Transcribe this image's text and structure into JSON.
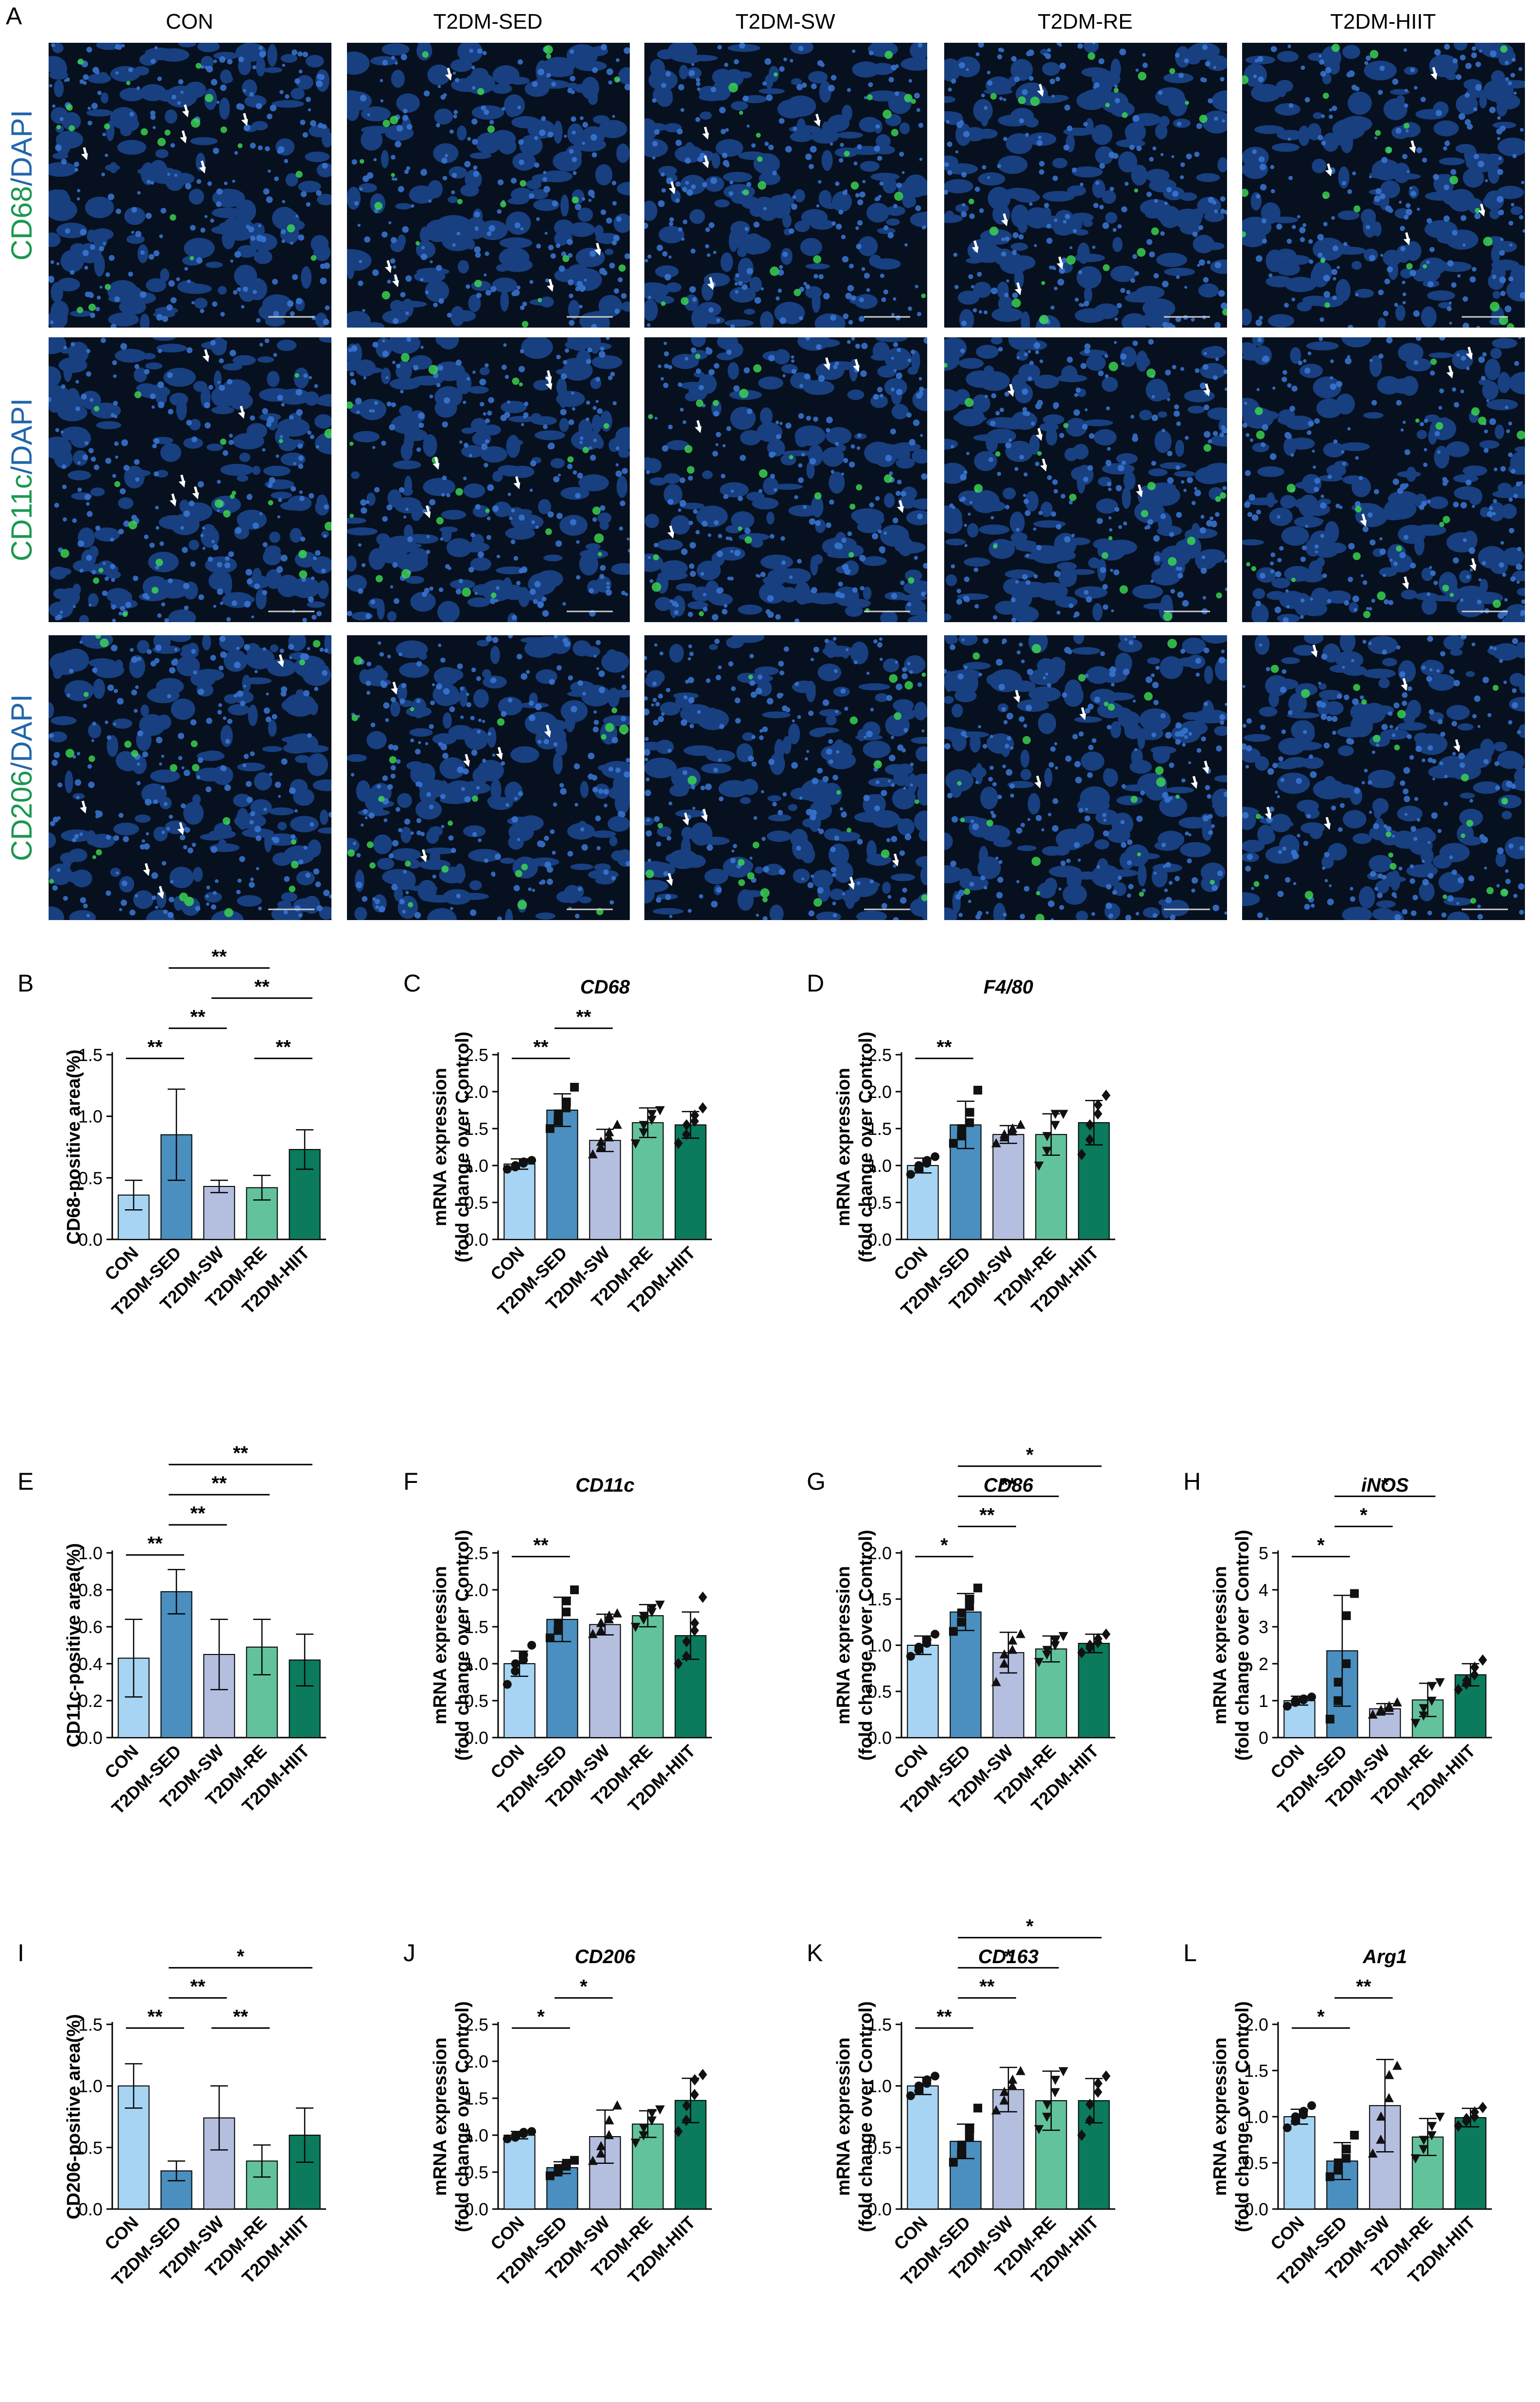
{
  "figure": {
    "panel_a_letter": "A",
    "groups": [
      "CON",
      "T2DM-SED",
      "T2DM-SW",
      "T2DM-RE",
      "T2DM-HIIT"
    ],
    "rows": [
      {
        "marker": "CD68",
        "sep": "/",
        "counter": "DAPI"
      },
      {
        "marker": "CD11c",
        "sep": "/",
        "counter": "DAPI"
      },
      {
        "marker": "CD206",
        "sep": "/",
        "counter": "DAPI"
      }
    ],
    "colors": {
      "marker_green": "#1a9850",
      "dapi_blue": "#2166ac",
      "tissue_blue": "#1f4fa0",
      "cell_green": "#3ddc52",
      "arrow": "#ffffff",
      "bar_colors": [
        "#a6d4f2",
        "#4a8fbf",
        "#b4bedf",
        "#62c29c",
        "#0b7a5d"
      ]
    }
  },
  "chart_data": [
    {
      "panel": "B",
      "type": "bar",
      "title": "",
      "ylabel": "CD68-positive area(%)",
      "categories": [
        "CON",
        "T2DM-SED",
        "T2DM-SW",
        "T2DM-RE",
        "T2DM-HIIT"
      ],
      "values": [
        0.36,
        0.85,
        0.43,
        0.42,
        0.73
      ],
      "errors": [
        0.12,
        0.37,
        0.05,
        0.1,
        0.16
      ],
      "ylim": [
        0,
        1.5
      ],
      "yticks": [
        "0.0",
        "0.5",
        "1.0",
        "1.5"
      ],
      "significance": [
        {
          "from": 0,
          "to": 1,
          "label": "**"
        },
        {
          "from": 1,
          "to": 2,
          "label": "**"
        },
        {
          "from": 2,
          "to": 4,
          "label": "**"
        },
        {
          "from": 1,
          "to": 3,
          "label": "**"
        },
        {
          "from": 3,
          "to": 4,
          "label": "**"
        }
      ]
    },
    {
      "panel": "C",
      "type": "bar",
      "title": "CD68",
      "ylabel": "mRNA expression\n(fold change over Control)",
      "categories": [
        "CON",
        "T2DM-SED",
        "T2DM-SW",
        "T2DM-RE",
        "T2DM-HIIT"
      ],
      "values": [
        1.02,
        1.75,
        1.34,
        1.58,
        1.55
      ],
      "errors": [
        0.07,
        0.22,
        0.15,
        0.2,
        0.18
      ],
      "points": [
        [
          0.95,
          0.98,
          1.0,
          1.03,
          1.05,
          1.07
        ],
        [
          1.5,
          1.6,
          1.7,
          1.78,
          1.86,
          2.06
        ],
        [
          1.15,
          1.25,
          1.32,
          1.38,
          1.45,
          1.55
        ],
        [
          1.3,
          1.45,
          1.55,
          1.62,
          1.7,
          1.75
        ],
        [
          1.3,
          1.42,
          1.55,
          1.6,
          1.68,
          1.78
        ]
      ],
      "ylim": [
        0,
        2.5
      ],
      "yticks": [
        "0.0",
        "0.5",
        "1.0",
        "1.5",
        "2.0",
        "2.5"
      ],
      "significance": [
        {
          "from": 0,
          "to": 1,
          "label": "**"
        },
        {
          "from": 1,
          "to": 2,
          "label": "**"
        }
      ]
    },
    {
      "panel": "D",
      "type": "bar",
      "title": "F4/80",
      "ylabel": "mRNA expression\n(fold change over Control)",
      "categories": [
        "CON",
        "T2DM-SED",
        "T2DM-SW",
        "T2DM-RE",
        "T2DM-HIIT"
      ],
      "values": [
        1.0,
        1.55,
        1.42,
        1.42,
        1.58
      ],
      "errors": [
        0.1,
        0.32,
        0.12,
        0.28,
        0.3
      ],
      "points": [
        [
          0.88,
          0.95,
          1.0,
          1.03,
          1.07,
          1.12
        ],
        [
          1.3,
          1.4,
          1.5,
          1.58,
          1.72,
          2.02
        ],
        [
          1.3,
          1.38,
          1.42,
          1.46,
          1.5,
          1.55
        ],
        [
          1.0,
          1.2,
          1.4,
          1.55,
          1.7,
          1.7
        ],
        [
          1.15,
          1.35,
          1.55,
          1.7,
          1.82,
          1.95
        ]
      ],
      "ylim": [
        0,
        2.5
      ],
      "yticks": [
        "0.0",
        "0.5",
        "1.0",
        "1.5",
        "2.0",
        "2.5"
      ],
      "significance": [
        {
          "from": 0,
          "to": 1,
          "label": "**"
        }
      ]
    },
    {
      "panel": "E",
      "type": "bar",
      "title": "",
      "ylabel": "CD11c-positive area(%)",
      "categories": [
        "CON",
        "T2DM-SED",
        "T2DM-SW",
        "T2DM-RE",
        "T2DM-HIIT"
      ],
      "values": [
        0.43,
        0.79,
        0.45,
        0.49,
        0.42
      ],
      "errors": [
        0.21,
        0.12,
        0.19,
        0.15,
        0.14
      ],
      "ylim": [
        0,
        1.0
      ],
      "yticks": [
        "0.0",
        "0.2",
        "0.4",
        "0.6",
        "0.8",
        "1.0"
      ],
      "significance": [
        {
          "from": 0,
          "to": 1,
          "label": "**"
        },
        {
          "from": 1,
          "to": 2,
          "label": "**"
        },
        {
          "from": 1,
          "to": 3,
          "label": "**"
        },
        {
          "from": 1,
          "to": 4,
          "label": "**"
        }
      ]
    },
    {
      "panel": "F",
      "type": "bar",
      "title": "CD11c",
      "ylabel": "mRNA expression\n(fold change over Control)",
      "categories": [
        "CON",
        "T2DM-SED",
        "T2DM-SW",
        "T2DM-RE",
        "T2DM-HIIT"
      ],
      "values": [
        1.0,
        1.6,
        1.53,
        1.65,
        1.38
      ],
      "errors": [
        0.17,
        0.3,
        0.14,
        0.15,
        0.32
      ],
      "points": [
        [
          0.72,
          0.9,
          1.0,
          1.05,
          1.12,
          1.25
        ],
        [
          1.35,
          1.45,
          1.55,
          1.7,
          1.85,
          2.0
        ],
        [
          1.4,
          1.45,
          1.55,
          1.6,
          1.65,
          1.68
        ],
        [
          1.5,
          1.6,
          1.65,
          1.7,
          1.75,
          1.8
        ],
        [
          1.0,
          1.1,
          1.3,
          1.45,
          1.55,
          1.9
        ]
      ],
      "ylim": [
        0,
        2.5
      ],
      "yticks": [
        "0.0",
        "0.5",
        "1.0",
        "1.5",
        "2.0",
        "2.5"
      ],
      "significance": [
        {
          "from": 0,
          "to": 1,
          "label": "**"
        }
      ]
    },
    {
      "panel": "G",
      "type": "bar",
      "title": "CD86",
      "ylabel": "mRNA expression\n(fold change over Control)",
      "categories": [
        "CON",
        "T2DM-SED",
        "T2DM-SW",
        "T2DM-RE",
        "T2DM-HIIT"
      ],
      "values": [
        1.0,
        1.36,
        0.92,
        0.96,
        1.02
      ],
      "errors": [
        0.1,
        0.2,
        0.22,
        0.14,
        0.1
      ],
      "points": [
        [
          0.88,
          0.95,
          0.98,
          1.02,
          1.06,
          1.12
        ],
        [
          1.15,
          1.25,
          1.35,
          1.42,
          1.5,
          1.62
        ],
        [
          0.6,
          0.8,
          0.9,
          0.95,
          1.05,
          1.12
        ],
        [
          0.82,
          0.9,
          0.95,
          1.0,
          1.05,
          1.1
        ],
        [
          0.92,
          0.97,
          1.0,
          1.03,
          1.07,
          1.12
        ]
      ],
      "ylim": [
        0,
        2.0
      ],
      "yticks": [
        "0.0",
        "0.5",
        "1.0",
        "1.5",
        "2.0"
      ],
      "significance": [
        {
          "from": 0,
          "to": 1,
          "label": "*"
        },
        {
          "from": 1,
          "to": 2,
          "label": "**"
        },
        {
          "from": 1,
          "to": 3,
          "label": "**"
        },
        {
          "from": 1,
          "to": 4,
          "label": "*"
        }
      ]
    },
    {
      "panel": "H",
      "type": "bar",
      "title": "iNOS",
      "ylabel": "mRNA expression\n(fold change over Control)",
      "categories": [
        "CON",
        "T2DM-SED",
        "T2DM-SW",
        "T2DM-RE",
        "T2DM-HIIT"
      ],
      "values": [
        1.0,
        2.35,
        0.78,
        1.02,
        1.7
      ],
      "errors": [
        0.12,
        1.5,
        0.14,
        0.45,
        0.3
      ],
      "points": [
        [
          0.85,
          0.95,
          1.0,
          1.02,
          1.05,
          1.1
        ],
        [
          0.5,
          1.0,
          1.5,
          2.0,
          3.3,
          3.9
        ],
        [
          0.62,
          0.7,
          0.75,
          0.8,
          0.85,
          0.95
        ],
        [
          0.4,
          0.6,
          0.8,
          1.0,
          1.4,
          1.5
        ],
        [
          1.3,
          1.45,
          1.55,
          1.7,
          1.9,
          2.1
        ]
      ],
      "ylim": [
        0,
        5
      ],
      "yticks": [
        "0",
        "1",
        "2",
        "3",
        "4",
        "5"
      ],
      "significance": [
        {
          "from": 0,
          "to": 1,
          "label": "*"
        },
        {
          "from": 1,
          "to": 2,
          "label": "*"
        },
        {
          "from": 1,
          "to": 3,
          "label": "*"
        }
      ]
    },
    {
      "panel": "I",
      "type": "bar",
      "title": "",
      "ylabel": "CD206-positive area(%)",
      "categories": [
        "CON",
        "T2DM-SED",
        "T2DM-SW",
        "T2DM-RE",
        "T2DM-HIIT"
      ],
      "values": [
        1.0,
        0.31,
        0.74,
        0.39,
        0.6
      ],
      "errors": [
        0.18,
        0.08,
        0.26,
        0.13,
        0.22
      ],
      "ylim": [
        0,
        1.5
      ],
      "yticks": [
        "0.0",
        "0.5",
        "1.0",
        "1.5"
      ],
      "significance": [
        {
          "from": 0,
          "to": 1,
          "label": "**"
        },
        {
          "from": 1,
          "to": 2,
          "label": "**"
        },
        {
          "from": 2,
          "to": 3,
          "label": "**"
        },
        {
          "from": 1,
          "to": 4,
          "label": "*"
        }
      ]
    },
    {
      "panel": "J",
      "type": "bar",
      "title": "CD206",
      "ylabel": "mRNA expression\n(fold change over Control)",
      "categories": [
        "CON",
        "T2DM-SED",
        "T2DM-SW",
        "T2DM-RE",
        "T2DM-HIIT"
      ],
      "values": [
        1.0,
        0.56,
        0.98,
        1.15,
        1.47
      ],
      "errors": [
        0.05,
        0.08,
        0.36,
        0.18,
        0.3
      ],
      "points": [
        [
          0.95,
          0.97,
          1.0,
          1.02,
          1.04,
          1.05
        ],
        [
          0.45,
          0.5,
          0.55,
          0.58,
          0.62,
          0.66
        ],
        [
          0.65,
          0.75,
          0.85,
          1.0,
          1.2,
          1.4
        ],
        [
          0.9,
          1.0,
          1.1,
          1.2,
          1.3,
          1.35
        ],
        [
          1.05,
          1.2,
          1.4,
          1.55,
          1.75,
          1.82
        ]
      ],
      "ylim": [
        0,
        2.5
      ],
      "yticks": [
        "0.0",
        "0.5",
        "1.0",
        "1.5",
        "2.0",
        "2.5"
      ],
      "significance": [
        {
          "from": 0,
          "to": 1,
          "label": "*"
        },
        {
          "from": 1,
          "to": 2,
          "label": "*"
        }
      ]
    },
    {
      "panel": "K",
      "type": "bar",
      "title": "CD163",
      "ylabel": "mRNA expression\n(fold change over Control)",
      "categories": [
        "CON",
        "T2DM-SED",
        "T2DM-SW",
        "T2DM-RE",
        "T2DM-HIIT"
      ],
      "values": [
        1.0,
        0.55,
        0.97,
        0.88,
        0.88
      ],
      "errors": [
        0.07,
        0.14,
        0.18,
        0.24,
        0.18
      ],
      "points": [
        [
          0.92,
          0.96,
          1.0,
          1.02,
          1.05,
          1.08
        ],
        [
          0.38,
          0.45,
          0.52,
          0.58,
          0.65,
          0.82
        ],
        [
          0.8,
          0.88,
          0.95,
          1.0,
          1.05,
          1.12
        ],
        [
          0.65,
          0.75,
          0.85,
          0.95,
          1.05,
          1.12
        ],
        [
          0.6,
          0.72,
          0.85,
          0.95,
          1.02,
          1.08
        ]
      ],
      "ylim": [
        0,
        1.5
      ],
      "yticks": [
        "0.0",
        "0.5",
        "1.0",
        "1.5"
      ],
      "significance": [
        {
          "from": 0,
          "to": 1,
          "label": "**"
        },
        {
          "from": 1,
          "to": 2,
          "label": "**"
        },
        {
          "from": 1,
          "to": 3,
          "label": "*"
        },
        {
          "from": 1,
          "to": 4,
          "label": "*"
        }
      ]
    },
    {
      "panel": "L",
      "type": "bar",
      "title": "Arg1",
      "ylabel": "mRNA expression\n(fold change over Control)",
      "categories": [
        "CON",
        "T2DM-SED",
        "T2DM-SW",
        "T2DM-RE",
        "T2DM-HIIT"
      ],
      "values": [
        1.0,
        0.52,
        1.12,
        0.78,
        0.99
      ],
      "errors": [
        0.08,
        0.2,
        0.5,
        0.2,
        0.1
      ],
      "points": [
        [
          0.88,
          0.95,
          1.0,
          1.02,
          1.06,
          1.12
        ],
        [
          0.35,
          0.42,
          0.5,
          0.55,
          0.65,
          0.8
        ],
        [
          0.6,
          0.75,
          1.0,
          1.2,
          1.45,
          1.55
        ],
        [
          0.55,
          0.65,
          0.75,
          0.8,
          0.9,
          1.0
        ],
        [
          0.9,
          0.95,
          0.98,
          1.0,
          1.05,
          1.1
        ]
      ],
      "ylim": [
        0,
        2.0
      ],
      "yticks": [
        "0.0",
        "0.5",
        "1.0",
        "1.5",
        "2.0"
      ],
      "significance": [
        {
          "from": 0,
          "to": 1,
          "label": "*"
        },
        {
          "from": 1,
          "to": 2,
          "label": "**"
        }
      ]
    }
  ]
}
